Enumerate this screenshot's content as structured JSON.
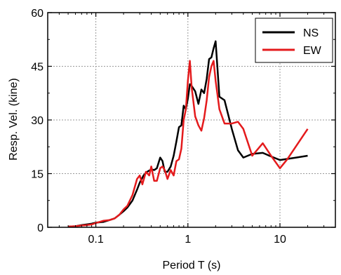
{
  "chart_data": {
    "type": "line",
    "xlabel": "Period T (s)",
    "ylabel": "Resp. Vel. (kine)",
    "xscale": "log",
    "xlim": [
      0.03,
      40
    ],
    "ylim": [
      0,
      60
    ],
    "grid": true,
    "legend_position": "top-right",
    "x_ticks": [
      {
        "value": 0.1,
        "label": "0.1"
      },
      {
        "value": 1,
        "label": "1"
      },
      {
        "value": 10,
        "label": "10"
      }
    ],
    "y_ticks": [
      {
        "value": 0,
        "label": "0"
      },
      {
        "value": 15,
        "label": "15"
      },
      {
        "value": 30,
        "label": "30"
      },
      {
        "value": 45,
        "label": "45"
      },
      {
        "value": 60,
        "label": "60"
      }
    ],
    "series": [
      {
        "name": "NS",
        "color": "#000000",
        "points": [
          [
            0.05,
            0.2
          ],
          [
            0.06,
            0.3
          ],
          [
            0.07,
            0.6
          ],
          [
            0.08,
            0.8
          ],
          [
            0.09,
            1.0
          ],
          [
            0.1,
            1.3
          ],
          [
            0.12,
            1.5
          ],
          [
            0.14,
            2.0
          ],
          [
            0.16,
            2.5
          ],
          [
            0.18,
            3.5
          ],
          [
            0.2,
            4.5
          ],
          [
            0.22,
            5.5
          ],
          [
            0.25,
            7.5
          ],
          [
            0.28,
            10.5
          ],
          [
            0.3,
            12.5
          ],
          [
            0.33,
            14.5
          ],
          [
            0.36,
            15.5
          ],
          [
            0.4,
            16.2
          ],
          [
            0.43,
            16.0
          ],
          [
            0.46,
            16.5
          ],
          [
            0.5,
            19.5
          ],
          [
            0.53,
            18.5
          ],
          [
            0.56,
            15.5
          ],
          [
            0.6,
            15.5
          ],
          [
            0.65,
            17.0
          ],
          [
            0.7,
            20.0
          ],
          [
            0.75,
            24.0
          ],
          [
            0.8,
            28.0
          ],
          [
            0.85,
            28.5
          ],
          [
            0.9,
            34.0
          ],
          [
            0.95,
            33.0
          ],
          [
            1.0,
            36.0
          ],
          [
            1.05,
            40.0
          ],
          [
            1.1,
            39.5
          ],
          [
            1.2,
            38.0
          ],
          [
            1.3,
            34.5
          ],
          [
            1.4,
            38.5
          ],
          [
            1.5,
            37.5
          ],
          [
            1.6,
            41.5
          ],
          [
            1.7,
            47.0
          ],
          [
            1.8,
            47.5
          ],
          [
            1.9,
            50.0
          ],
          [
            2.0,
            52.0
          ],
          [
            2.2,
            36.5
          ],
          [
            2.5,
            35.5
          ],
          [
            3.0,
            27.5
          ],
          [
            3.5,
            21.5
          ],
          [
            4.0,
            19.5
          ],
          [
            5.0,
            20.5
          ],
          [
            6.5,
            20.8
          ],
          [
            8.0,
            19.8
          ],
          [
            10.0,
            18.8
          ],
          [
            15.0,
            19.5
          ],
          [
            20.0,
            20.0
          ]
        ]
      },
      {
        "name": "EW",
        "color": "#e41a1c",
        "points": [
          [
            0.05,
            0.2
          ],
          [
            0.06,
            0.3
          ],
          [
            0.07,
            0.5
          ],
          [
            0.08,
            0.6
          ],
          [
            0.09,
            0.8
          ],
          [
            0.1,
            1.2
          ],
          [
            0.12,
            1.8
          ],
          [
            0.14,
            2.0
          ],
          [
            0.16,
            2.5
          ],
          [
            0.18,
            3.5
          ],
          [
            0.2,
            5.0
          ],
          [
            0.22,
            6.0
          ],
          [
            0.25,
            9.0
          ],
          [
            0.28,
            13.5
          ],
          [
            0.3,
            14.5
          ],
          [
            0.32,
            12.0
          ],
          [
            0.35,
            15.5
          ],
          [
            0.38,
            14.5
          ],
          [
            0.4,
            17.0
          ],
          [
            0.43,
            13.0
          ],
          [
            0.46,
            13.0
          ],
          [
            0.5,
            16.5
          ],
          [
            0.53,
            17.0
          ],
          [
            0.56,
            16.0
          ],
          [
            0.6,
            13.5
          ],
          [
            0.65,
            16.0
          ],
          [
            0.7,
            14.5
          ],
          [
            0.75,
            18.5
          ],
          [
            0.8,
            19.0
          ],
          [
            0.85,
            22.0
          ],
          [
            0.9,
            30.0
          ],
          [
            0.95,
            33.0
          ],
          [
            1.0,
            41.0
          ],
          [
            1.05,
            46.5
          ],
          [
            1.1,
            39.0
          ],
          [
            1.2,
            31.0
          ],
          [
            1.3,
            28.5
          ],
          [
            1.4,
            27.0
          ],
          [
            1.5,
            30.5
          ],
          [
            1.6,
            35.5
          ],
          [
            1.7,
            42.0
          ],
          [
            1.8,
            45.0
          ],
          [
            1.9,
            46.5
          ],
          [
            2.0,
            41.0
          ],
          [
            2.2,
            33.0
          ],
          [
            2.5,
            29.0
          ],
          [
            3.0,
            29.0
          ],
          [
            3.5,
            29.5
          ],
          [
            4.0,
            27.5
          ],
          [
            5.0,
            20.0
          ],
          [
            6.5,
            23.5
          ],
          [
            8.0,
            20.0
          ],
          [
            10.0,
            16.5
          ],
          [
            12.0,
            19.0
          ],
          [
            20.0,
            27.5
          ]
        ]
      }
    ]
  }
}
